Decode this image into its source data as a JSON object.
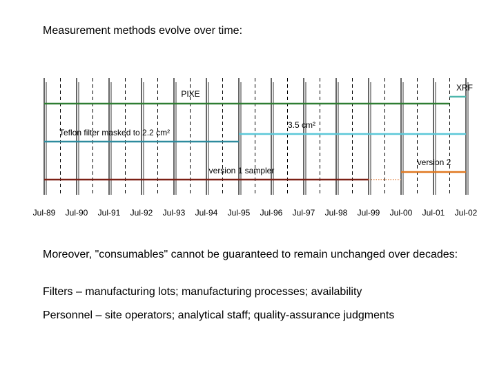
{
  "slide": {
    "title": "Measurement methods evolve over time:",
    "paragraphs": [
      "Moreover, \"consumables\" cannot be guaranteed to remain unchanged over decades:",
      "Filters – manufacturing lots; manufacturing processes; availability",
      "Personnel – site operators; analytical staff; quality-assurance judgments"
    ]
  },
  "chart_data": {
    "type": "timeline",
    "title": "",
    "x_tick_labels": [
      "Jul-89",
      "Jul-90",
      "Jul-91",
      "Jul-92",
      "Jul-93",
      "Jul-94",
      "Jul-95",
      "Jul-96",
      "Jul-97",
      "Jul-98",
      "Jul-99",
      "Jul-00",
      "Jul-01",
      "Jul-02"
    ],
    "x_range": [
      "Jul-89",
      "Jul-02"
    ],
    "gridlines": "solid at each July, dashed at each January",
    "segments": [
      {
        "label": "PIXE",
        "start": "Jul-89",
        "end": "Jan-02",
        "color": "#2E7D32",
        "style": "solid"
      },
      {
        "label": "XRF",
        "start": "Jan-02",
        "end": "Jul-02",
        "color": "#4DB6AC",
        "style": "solid"
      },
      {
        "label": "Teflon filter masked to 2.2 cm²",
        "start": "Jul-89",
        "end": "Jul-95",
        "color": "#2E8B9E",
        "style": "solid"
      },
      {
        "label": "3.5 cm²",
        "start": "Jul-95",
        "end": "Jul-02",
        "color": "#5BC8D8",
        "style": "solid"
      },
      {
        "label": "version 1 sampler",
        "start": "Jul-89",
        "end": "Jul-99",
        "color": "#7B1F14",
        "style": "solid"
      },
      {
        "label": "",
        "start": "Jul-99",
        "end": "Jul-00",
        "color": "#E8A070",
        "style": "dotted"
      },
      {
        "label": "version 2",
        "start": "Jul-00",
        "end": "Jul-02",
        "color": "#E07820",
        "style": "solid"
      }
    ]
  }
}
